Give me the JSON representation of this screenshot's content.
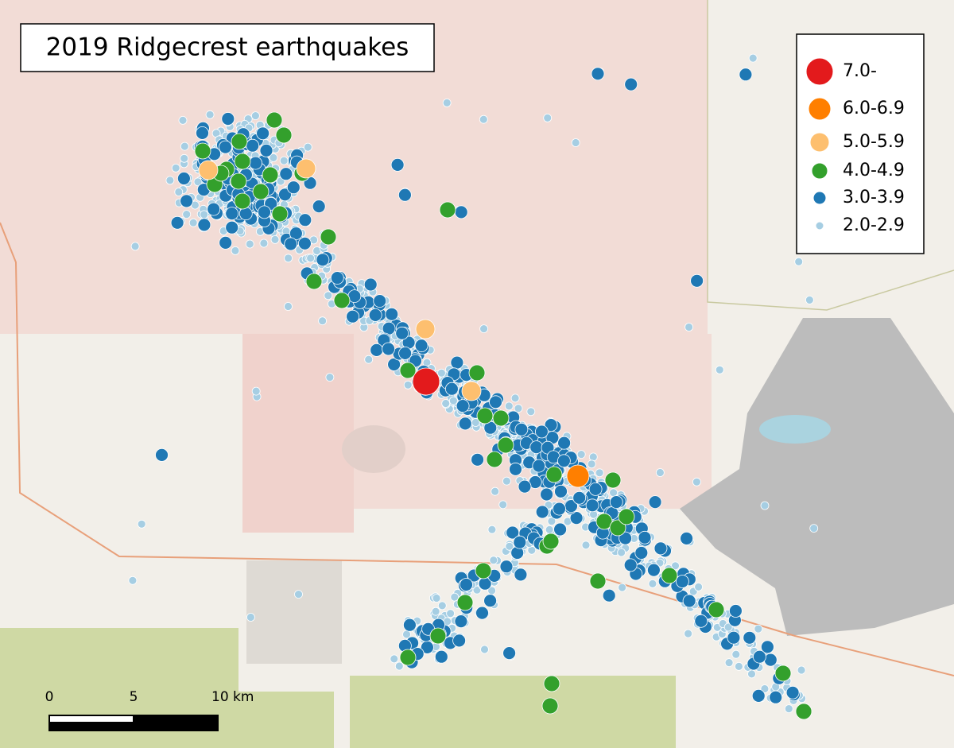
{
  "title": "2019 Ridgecrest earthquakes",
  "legend": {
    "items": [
      {
        "label": "7.0-",
        "color": "#e31a1c"
      },
      {
        "label": "6.0-6.9",
        "color": "#ff7f00"
      },
      {
        "label": "5.0-5.9",
        "color": "#fdbf6f"
      },
      {
        "label": "4.0-4.9",
        "color": "#33a02c"
      },
      {
        "label": "3.0-3.9",
        "color": "#1f78b4"
      },
      {
        "label": "2.0-2.9",
        "color": "#a6cee3"
      }
    ]
  },
  "scale_bar": {
    "labels": [
      "0",
      "5",
      "10 km"
    ]
  }
}
